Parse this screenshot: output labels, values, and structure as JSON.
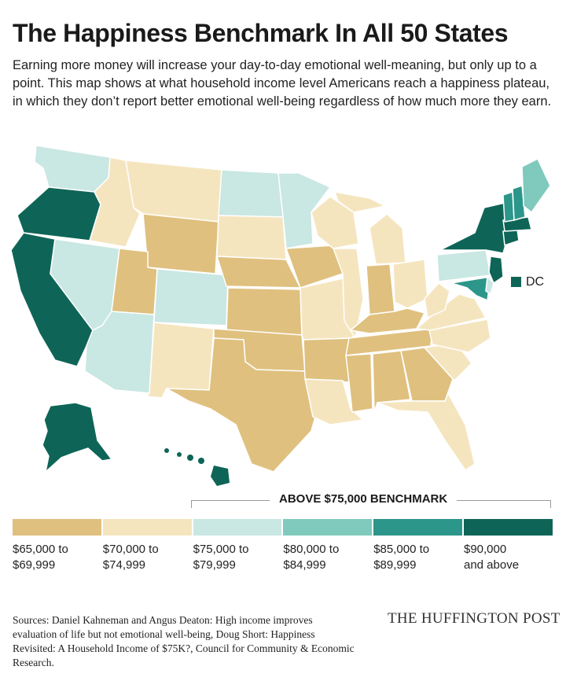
{
  "title": "The Happiness Benchmark In All 50 States",
  "intro": "Earning more money will increase your day-to-day emotional well-meaning, but only up to a point. This map shows at what household income level Americans reach a happiness plateau, in which they don’t report better emotional well-being regardless of how much more they earn.",
  "dc_label": "DC",
  "benchmark_label": "ABOVE $75,000 BENCHMARK",
  "legend": [
    {
      "line1": "$65,000 to",
      "line2": "$69,999",
      "color": "#dfc07e"
    },
    {
      "line1": "$70,000 to",
      "line2": "$74,999",
      "color": "#f5e5bf"
    },
    {
      "line1": "$75,000 to",
      "line2": "$79,999",
      "color": "#c9e7e3"
    },
    {
      "line1": "$80,000 to",
      "line2": "$84,999",
      "color": "#7fcabd"
    },
    {
      "line1": "$85,000 to",
      "line2": "$89,999",
      "color": "#2c968a"
    },
    {
      "line1": "$90,000",
      "line2": "and above",
      "color": "#0e6557"
    }
  ],
  "sources": "Sources: Daniel Kahneman and Angus Deaton: High income improves evaluation of life but not emotional well-being, Doug Short: Happiness Revisited: A Household Income of $75K?, Council for Community & Economic Research.",
  "brand": "THE HUFFINGTON POST"
}
